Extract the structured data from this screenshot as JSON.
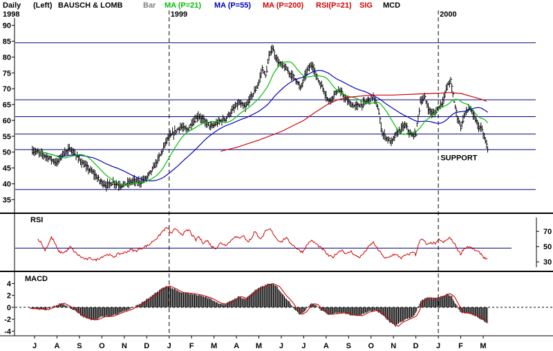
{
  "header": {
    "period": "Daily",
    "scale": "(Left)",
    "symbol": "BAUSCH & LOMB",
    "bar_label": "Bar",
    "ma21_label": "MA (P=21)",
    "ma55_label": "MA (P=55)",
    "ma200_label": "MA (P=200)",
    "rsi_label": "RSI(P=21)",
    "sig_label": "SIG",
    "macd_label": "MCD"
  },
  "colors": {
    "price": "#000000",
    "ma21": "#00c000",
    "ma55": "#0000c0",
    "ma200": "#d00000",
    "rsi": "#d00000",
    "signal": "#d00000",
    "reference_lines": "#000080",
    "year_dividers": "#000000",
    "grey": "#808080"
  },
  "chart_data": [
    {
      "type": "line",
      "panel": "price",
      "ylim": [
        34,
        91
      ],
      "yticks": [
        35,
        40,
        45,
        50,
        55,
        60,
        65,
        70,
        75,
        80,
        85,
        90
      ],
      "x_month_labels": [
        "J",
        "A",
        "S",
        "O",
        "N",
        "D",
        "J",
        "F",
        "M",
        "A",
        "M",
        "J",
        "J",
        "A",
        "S",
        "O",
        "N",
        "D",
        "J",
        "F",
        "M"
      ],
      "year_labels": [
        {
          "label": "1998",
          "month_index": 0
        },
        {
          "label": "1999",
          "month_index": 6
        },
        {
          "label": "2000",
          "month_index": 18
        }
      ],
      "horizontal_lines": [
        84.5,
        66.5,
        61.2,
        55.7,
        50.8,
        38.2
      ],
      "annotations": [
        {
          "text": "SUPPORT",
          "month": 18.1,
          "price": 48.3
        }
      ],
      "price_anchors": [
        [
          -0.1,
          50.5
        ],
        [
          0.3,
          49.5
        ],
        [
          0.7,
          48.0
        ],
        [
          1.0,
          46.5
        ],
        [
          1.25,
          49.5
        ],
        [
          1.6,
          51.0
        ],
        [
          1.9,
          48.5
        ],
        [
          2.2,
          46.0
        ],
        [
          2.6,
          43.5
        ],
        [
          2.9,
          41.0
        ],
        [
          3.2,
          39.5
        ],
        [
          3.5,
          40.5
        ],
        [
          3.8,
          39.5
        ],
        [
          4.1,
          40.0
        ],
        [
          4.4,
          41.0
        ],
        [
          4.7,
          40.5
        ],
        [
          5.0,
          42.0
        ],
        [
          5.3,
          45.0
        ],
        [
          5.6,
          49.0
        ],
        [
          5.9,
          54.0
        ],
        [
          6.2,
          56.0
        ],
        [
          6.5,
          58.0
        ],
        [
          6.8,
          57.0
        ],
        [
          7.0,
          59.0
        ],
        [
          7.3,
          61.5
        ],
        [
          7.6,
          59.5
        ],
        [
          7.9,
          58.0
        ],
        [
          8.2,
          59.5
        ],
        [
          8.5,
          60.5
        ],
        [
          8.8,
          63.0
        ],
        [
          9.1,
          65.5
        ],
        [
          9.4,
          64.0
        ],
        [
          9.6,
          67.0
        ],
        [
          9.8,
          69.0
        ],
        [
          10.0,
          72.0
        ],
        [
          10.15,
          76.5
        ],
        [
          10.3,
          74.0
        ],
        [
          10.45,
          80.0
        ],
        [
          10.6,
          83.0
        ],
        [
          10.75,
          80.0
        ],
        [
          10.9,
          78.0
        ],
        [
          11.1,
          77.0
        ],
        [
          11.3,
          75.5
        ],
        [
          11.5,
          74.0
        ],
        [
          11.7,
          72.5
        ],
        [
          11.85,
          70.0
        ],
        [
          12.0,
          73.0
        ],
        [
          12.2,
          76.5
        ],
        [
          12.4,
          77.5
        ],
        [
          12.55,
          74.0
        ],
        [
          12.7,
          72.0
        ],
        [
          12.9,
          69.5
        ],
        [
          13.1,
          66.0
        ],
        [
          13.3,
          67.5
        ],
        [
          13.5,
          69.5
        ],
        [
          13.7,
          68.5
        ],
        [
          13.9,
          66.5
        ],
        [
          14.1,
          65.0
        ],
        [
          14.3,
          64.5
        ],
        [
          14.6,
          65.0
        ],
        [
          14.9,
          66.5
        ],
        [
          15.1,
          67.5
        ],
        [
          15.3,
          64.0
        ],
        [
          15.5,
          56.0
        ],
        [
          15.7,
          54.5
        ],
        [
          15.9,
          53.0
        ],
        [
          16.1,
          55.5
        ],
        [
          16.3,
          57.0
        ],
        [
          16.5,
          58.5
        ],
        [
          16.65,
          57.0
        ],
        [
          16.8,
          55.0
        ],
        [
          17.0,
          56.0
        ],
        [
          17.2,
          66.0
        ],
        [
          17.4,
          67.0
        ],
        [
          17.6,
          63.0
        ],
        [
          17.8,
          62.0
        ],
        [
          18.0,
          64.0
        ],
        [
          18.2,
          66.0
        ],
        [
          18.4,
          71.0
        ],
        [
          18.55,
          72.5
        ],
        [
          18.7,
          66.0
        ],
        [
          18.85,
          61.0
        ],
        [
          19.0,
          58.0
        ],
        [
          19.2,
          62.5
        ],
        [
          19.4,
          64.0
        ],
        [
          19.6,
          61.0
        ],
        [
          19.8,
          58.0
        ],
        [
          19.95,
          57.0
        ],
        [
          20.1,
          53.0
        ],
        [
          20.2,
          51.5
        ]
      ],
      "ma200_anchors": [
        [
          8.3,
          50.3
        ],
        [
          9.0,
          51.5
        ],
        [
          10.0,
          53.8
        ],
        [
          11.0,
          56.5
        ],
        [
          12.0,
          60.0
        ],
        [
          12.5,
          62.5
        ],
        [
          13.0,
          64.8
        ],
        [
          13.5,
          66.5
        ],
        [
          14.0,
          67.3
        ],
        [
          15.0,
          68.0
        ],
        [
          16.0,
          68.0
        ],
        [
          17.0,
          68.3
        ],
        [
          18.0,
          68.6
        ],
        [
          18.5,
          68.8
        ],
        [
          19.0,
          68.5
        ],
        [
          19.5,
          67.5
        ],
        [
          20.0,
          66.5
        ],
        [
          20.15,
          66.0
        ]
      ]
    },
    {
      "type": "line",
      "panel": "rsi",
      "title": "RSI",
      "ylim": [
        27,
        77
      ],
      "yticks": [
        30,
        50,
        70
      ],
      "reference_line": 48,
      "anchors": [
        [
          0.15,
          60
        ],
        [
          0.3,
          55
        ],
        [
          0.45,
          45
        ],
        [
          0.6,
          52
        ],
        [
          0.75,
          62
        ],
        [
          0.85,
          58
        ],
        [
          1.0,
          48
        ],
        [
          1.1,
          43
        ],
        [
          1.3,
          42
        ],
        [
          1.5,
          46
        ],
        [
          1.6,
          50
        ],
        [
          1.75,
          44
        ],
        [
          1.9,
          40
        ],
        [
          2.1,
          36
        ],
        [
          2.3,
          33
        ],
        [
          2.5,
          35
        ],
        [
          2.7,
          32
        ],
        [
          2.9,
          35
        ],
        [
          3.1,
          38
        ],
        [
          3.3,
          40
        ],
        [
          3.5,
          36
        ],
        [
          3.7,
          40
        ],
        [
          3.9,
          41
        ],
        [
          4.1,
          43
        ],
        [
          4.3,
          46
        ],
        [
          4.5,
          44
        ],
        [
          4.7,
          47
        ],
        [
          4.9,
          50
        ],
        [
          5.1,
          52
        ],
        [
          5.3,
          58
        ],
        [
          5.5,
          62
        ],
        [
          5.7,
          70
        ],
        [
          5.9,
          75
        ],
        [
          6.0,
          72
        ],
        [
          6.1,
          66
        ],
        [
          6.2,
          73
        ],
        [
          6.35,
          71
        ],
        [
          6.5,
          68
        ],
        [
          6.6,
          66
        ],
        [
          6.75,
          70
        ],
        [
          6.9,
          72
        ],
        [
          7.0,
          66
        ],
        [
          7.1,
          62
        ],
        [
          7.2,
          58
        ],
        [
          7.3,
          64
        ],
        [
          7.5,
          55
        ],
        [
          7.7,
          58
        ],
        [
          7.9,
          50
        ],
        [
          8.1,
          48
        ],
        [
          8.3,
          55
        ],
        [
          8.5,
          52
        ],
        [
          8.7,
          56
        ],
        [
          8.9,
          63
        ],
        [
          9.1,
          61
        ],
        [
          9.3,
          65
        ],
        [
          9.5,
          56
        ],
        [
          9.7,
          62
        ],
        [
          9.8,
          70
        ],
        [
          9.95,
          65
        ],
        [
          10.1,
          60
        ],
        [
          10.3,
          70
        ],
        [
          10.5,
          73
        ],
        [
          10.65,
          67
        ],
        [
          10.8,
          60
        ],
        [
          11.0,
          56
        ],
        [
          11.2,
          62
        ],
        [
          11.4,
          55
        ],
        [
          11.6,
          50
        ],
        [
          11.8,
          45
        ],
        [
          11.95,
          43
        ],
        [
          12.1,
          50
        ],
        [
          12.3,
          58
        ],
        [
          12.5,
          55
        ],
        [
          12.7,
          50
        ],
        [
          12.9,
          45
        ],
        [
          13.1,
          38
        ],
        [
          13.3,
          36
        ],
        [
          13.5,
          42
        ],
        [
          13.7,
          46
        ],
        [
          13.9,
          40
        ],
        [
          14.1,
          44
        ],
        [
          14.3,
          38
        ],
        [
          14.5,
          36
        ],
        [
          14.7,
          42
        ],
        [
          14.9,
          50
        ],
        [
          15.1,
          56
        ],
        [
          15.3,
          46
        ],
        [
          15.5,
          40
        ],
        [
          15.6,
          34
        ],
        [
          15.8,
          36
        ],
        [
          16.0,
          40
        ],
        [
          16.2,
          38
        ],
        [
          16.35,
          35
        ],
        [
          16.5,
          38
        ],
        [
          16.7,
          40
        ],
        [
          16.9,
          44
        ],
        [
          17.0,
          38
        ],
        [
          17.1,
          52
        ],
        [
          17.2,
          60
        ],
        [
          17.35,
          58
        ],
        [
          17.5,
          52
        ],
        [
          17.7,
          55
        ],
        [
          17.9,
          54
        ],
        [
          18.05,
          60
        ],
        [
          18.2,
          55
        ],
        [
          18.35,
          58
        ],
        [
          18.5,
          62
        ],
        [
          18.6,
          58
        ],
        [
          18.7,
          55
        ],
        [
          18.8,
          50
        ],
        [
          18.9,
          44
        ],
        [
          19.0,
          40
        ],
        [
          19.1,
          46
        ],
        [
          19.3,
          50
        ],
        [
          19.5,
          48
        ],
        [
          19.7,
          44
        ],
        [
          19.9,
          41
        ],
        [
          20.05,
          35
        ],
        [
          20.2,
          34
        ]
      ]
    },
    {
      "type": "bar",
      "panel": "macd",
      "title": "MACD",
      "ylim": [
        -4.2,
        4.4
      ],
      "yticks": [
        -4,
        -2,
        0,
        2,
        4
      ],
      "anchors": [
        [
          -0.2,
          -0.2
        ],
        [
          0.5,
          -0.4
        ],
        [
          1.0,
          0.4
        ],
        [
          1.2,
          0.7
        ],
        [
          1.5,
          0.1
        ],
        [
          1.8,
          -0.6
        ],
        [
          2.1,
          -1.5
        ],
        [
          2.4,
          -2.0
        ],
        [
          2.7,
          -2.1
        ],
        [
          3.0,
          -1.6
        ],
        [
          3.4,
          -1.5
        ],
        [
          3.8,
          -0.9
        ],
        [
          4.2,
          -0.4
        ],
        [
          4.7,
          0.6
        ],
        [
          5.2,
          1.8
        ],
        [
          5.6,
          3.0
        ],
        [
          5.9,
          3.6
        ],
        [
          6.2,
          3.1
        ],
        [
          6.5,
          2.5
        ],
        [
          7.0,
          2.3
        ],
        [
          7.4,
          2.0
        ],
        [
          7.8,
          1.5
        ],
        [
          8.2,
          0.7
        ],
        [
          8.5,
          0.5
        ],
        [
          8.8,
          1.2
        ],
        [
          9.1,
          1.8
        ],
        [
          9.4,
          1.4
        ],
        [
          9.8,
          2.8
        ],
        [
          10.2,
          3.6
        ],
        [
          10.5,
          4.0
        ],
        [
          10.8,
          3.5
        ],
        [
          11.1,
          2.0
        ],
        [
          11.4,
          0.8
        ],
        [
          11.6,
          -0.4
        ],
        [
          11.8,
          -1.2
        ],
        [
          12.0,
          -0.8
        ],
        [
          12.3,
          0.6
        ],
        [
          12.5,
          0.5
        ],
        [
          12.8,
          -0.6
        ],
        [
          13.1,
          -1.2
        ],
        [
          13.5,
          -1.0
        ],
        [
          13.8,
          -0.9
        ],
        [
          14.1,
          -1.3
        ],
        [
          14.5,
          -1.4
        ],
        [
          14.8,
          -0.8
        ],
        [
          15.2,
          -0.5
        ],
        [
          15.5,
          -1.3
        ],
        [
          15.8,
          -2.4
        ],
        [
          16.1,
          -3.2
        ],
        [
          16.3,
          -2.5
        ],
        [
          16.6,
          -2.0
        ],
        [
          16.9,
          -1.5
        ],
        [
          17.05,
          -0.5
        ],
        [
          17.2,
          1.0
        ],
        [
          17.5,
          1.6
        ],
        [
          17.8,
          1.5
        ],
        [
          18.1,
          1.8
        ],
        [
          18.4,
          2.3
        ],
        [
          18.6,
          1.8
        ],
        [
          18.8,
          0.4
        ],
        [
          19.0,
          -0.9
        ],
        [
          19.3,
          -1.0
        ],
        [
          19.7,
          -1.5
        ],
        [
          20.0,
          -2.2
        ],
        [
          20.2,
          -2.8
        ]
      ]
    }
  ]
}
